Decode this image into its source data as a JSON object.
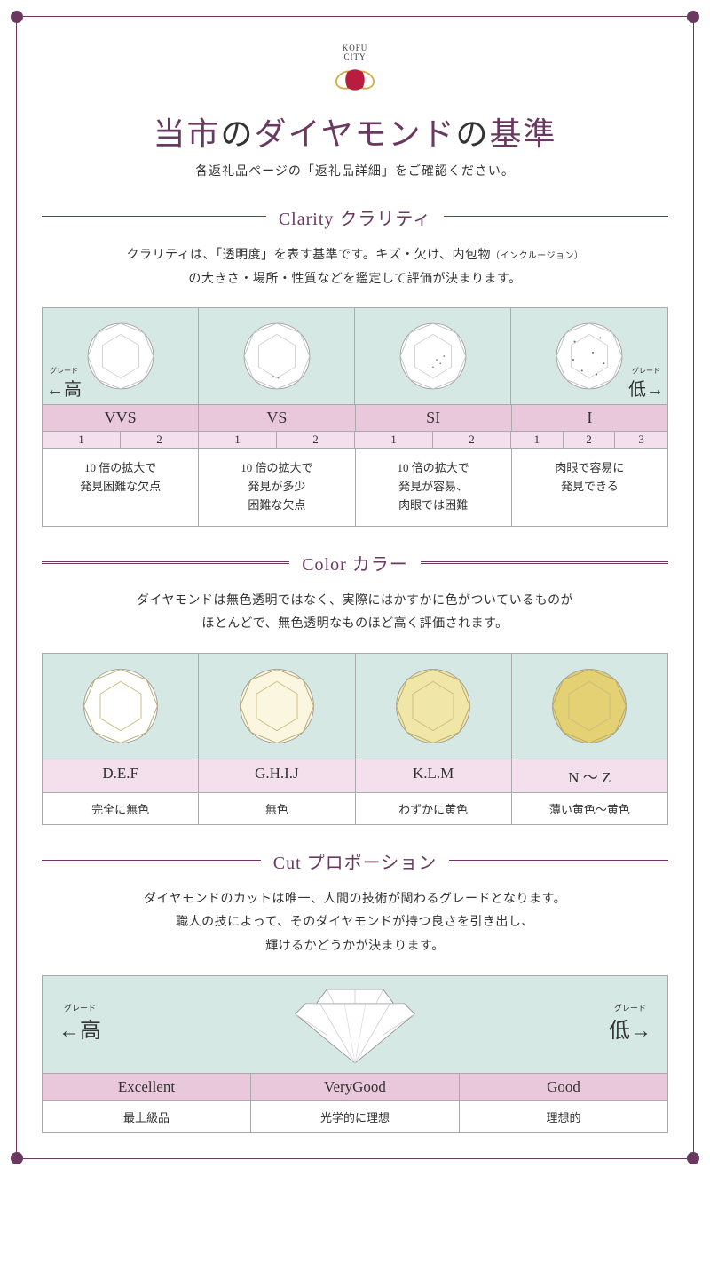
{
  "colors": {
    "accent": "#6a3960",
    "teal_bg": "#d6e8e3",
    "pink_dark": "#e9c8dc",
    "pink_light": "#f3e0ec",
    "logo_red": "#b81c3f",
    "logo_gold": "#d4a93f",
    "border": "#aaaaaa"
  },
  "logo": {
    "top_text": "KOFU",
    "bottom_text": "CITY"
  },
  "title": {
    "pre": "当市",
    "mid1": "の",
    "main": "ダイヤモンド",
    "mid2": "の",
    "post": "基準"
  },
  "subtitle": "各返礼品ページの「返礼品詳細」をご確認ください。",
  "grade_high": "高",
  "grade_low": "低",
  "grade_ruby": "グレード",
  "clarity": {
    "header": "Clarity クラリティ",
    "desc_line1_a": "クラリティは、「透明度」を表す基準です。キズ・欠け、内包物",
    "desc_line1_b": "（インクルージョン）",
    "desc_line2": "の大きさ・場所・性質などを鑑定して評価が決まります。",
    "grades": [
      "VVS",
      "VS",
      "SI",
      "I"
    ],
    "subs": [
      [
        "1",
        "2"
      ],
      [
        "1",
        "2"
      ],
      [
        "1",
        "2"
      ],
      [
        "1",
        "2",
        "3"
      ]
    ],
    "descs": [
      "10 倍の拡大で\n発見困難な欠点",
      "10 倍の拡大で\n発見が多少\n困難な欠点",
      "10 倍の拡大で\n発見が容易、\n肉眼では困難",
      "肉眼で容易に\n発見できる"
    ]
  },
  "color": {
    "header": "Color カラー",
    "desc_line1": "ダイヤモンドは無色透明ではなく、実際にはかすかに色がついているものが",
    "desc_line2": "ほとんどで、無色透明なものほど高く評価されます。",
    "labels": [
      "D.E.F",
      "G.H.I.J",
      "K.L.M",
      "N 〜 Z"
    ],
    "descs": [
      "完全に無色",
      "無色",
      "わずかに黄色",
      "薄い黄色〜黄色"
    ],
    "diamond_fills": [
      "#ffffff",
      "#faf6df",
      "#f0e6a8",
      "#e3d174"
    ]
  },
  "cut": {
    "header": "Cut プロポーション",
    "desc_line1": "ダイヤモンドのカットは唯一、人間の技術が関わるグレードとなります。",
    "desc_line2": "職人の技によって、そのダイヤモンドが持つ良さを引き出し、",
    "desc_line3": "輝けるかどうかが決まります。",
    "labels": [
      "Excellent",
      "VeryGood",
      "Good"
    ],
    "descs": [
      "最上級品",
      "光学的に理想",
      "理想的"
    ]
  }
}
